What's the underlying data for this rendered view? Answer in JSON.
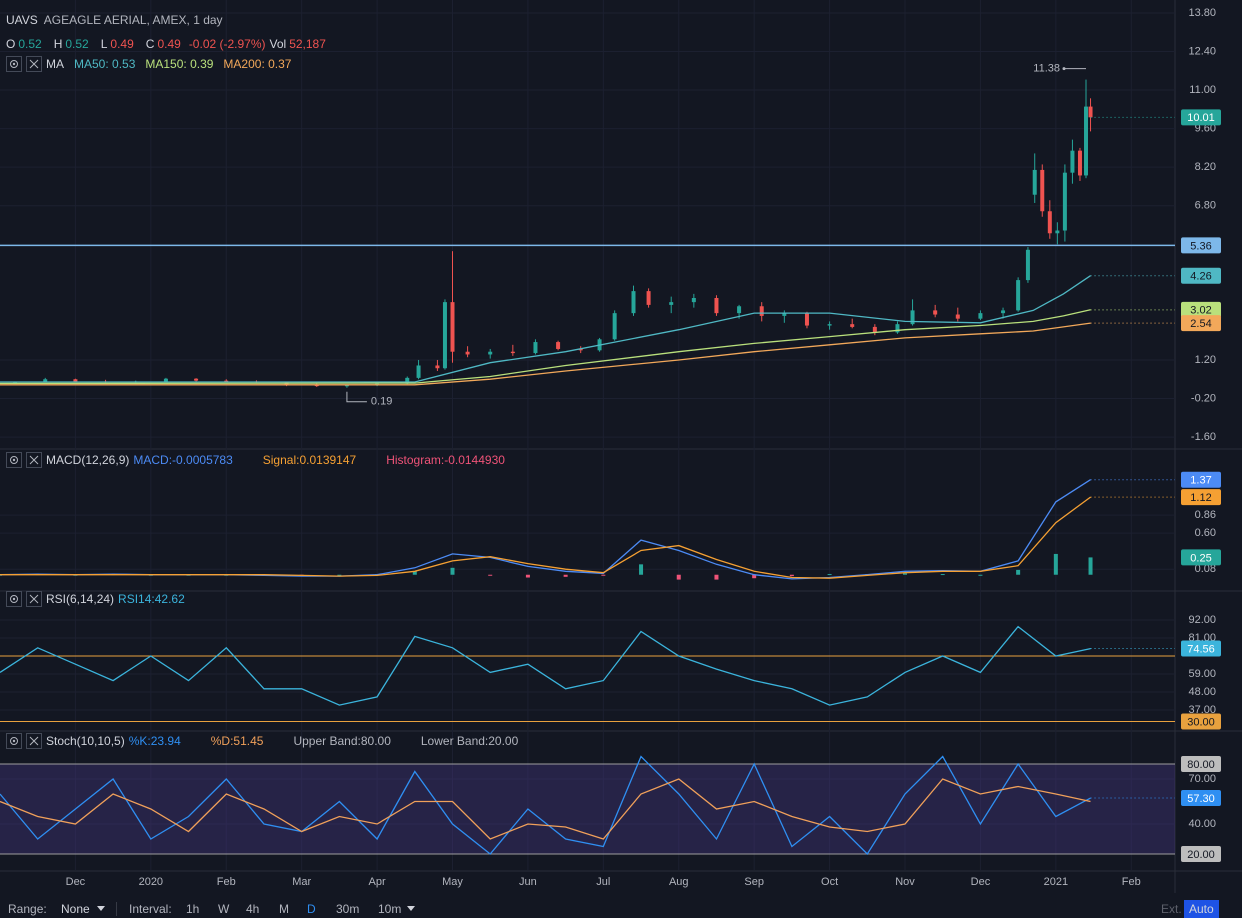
{
  "header": {
    "symbol": "UAVS",
    "description": "AGEAGLE AERIAL, AMEX, 1 day"
  },
  "chart_data": [
    {
      "type": "candlestick",
      "ohlc_legend": [
        "O",
        "0.52",
        "H",
        "0.52",
        "L",
        "0.49",
        "C",
        "0.49",
        "-0.02 (-2.97%)",
        "Vol",
        "52,187"
      ],
      "ma_title": "MA",
      "xlim": [
        0,
        15.58
      ],
      "xticks": [
        {
          "value": 1,
          "label": "Dec"
        },
        {
          "value": 2,
          "label": "2020"
        },
        {
          "value": 3,
          "label": "Feb"
        },
        {
          "value": 4,
          "label": "Mar"
        },
        {
          "value": 5,
          "label": "Apr"
        },
        {
          "value": 6,
          "label": "May"
        },
        {
          "value": 7,
          "label": "Jun"
        },
        {
          "value": 8,
          "label": "Jul"
        },
        {
          "value": 9,
          "label": "Aug"
        },
        {
          "value": 10,
          "label": "Sep"
        },
        {
          "value": 11,
          "label": "Oct"
        },
        {
          "value": 12,
          "label": "Nov"
        },
        {
          "value": 13,
          "label": "Dec"
        },
        {
          "value": 14,
          "label": "2021"
        },
        {
          "value": 15,
          "label": "Feb"
        }
      ],
      "ylim": [
        -1.96,
        14.27
      ],
      "yticks": [
        {
          "value": 13.8,
          "label": "13.80"
        },
        {
          "value": 12.4,
          "label": "12.40"
        },
        {
          "value": 11,
          "label": "11.00"
        },
        {
          "value": 9.6,
          "label": "9.60"
        },
        {
          "value": 8.2,
          "label": "8.20"
        },
        {
          "value": 6.8,
          "label": "6.80"
        },
        {
          "value": 1.2,
          "label": "1.20"
        },
        {
          "value": -0.2,
          "label": "-0.20"
        },
        {
          "value": -1.6,
          "label": "-1.60"
        }
      ],
      "grid": true,
      "candles": {
        "up_color": "#26a69a",
        "down_color": "#ef5350",
        "last_value_label": true,
        "x": [
          0.2,
          0.6,
          1.0,
          1.4,
          1.8,
          2.2,
          2.6,
          3.0,
          3.4,
          3.8,
          4.2,
          4.6,
          5.0,
          5.4,
          5.55,
          5.8,
          5.9,
          6.0,
          6.2,
          6.5,
          6.8,
          7.1,
          7.4,
          7.7,
          7.95,
          8.15,
          8.4,
          8.6,
          8.9,
          9.2,
          9.5,
          9.8,
          10.1,
          10.4,
          10.7,
          11.0,
          11.3,
          11.6,
          11.9,
          12.1,
          12.4,
          12.7,
          13.0,
          13.3,
          13.5,
          13.63,
          13.72,
          13.82,
          13.92,
          14.02,
          14.12,
          14.22,
          14.32,
          14.4,
          14.46
        ],
        "open": [
          0.35,
          0.4,
          0.5,
          0.42,
          0.38,
          0.42,
          0.52,
          0.45,
          0.42,
          0.38,
          0.3,
          0.25,
          0.28,
          0.34,
          0.55,
          1.0,
          0.9,
          3.3,
          1.5,
          1.4,
          1.5,
          1.45,
          1.85,
          1.6,
          1.55,
          1.95,
          2.9,
          3.7,
          3.2,
          3.3,
          3.45,
          2.9,
          3.15,
          2.8,
          2.9,
          2.45,
          2.5,
          2.4,
          2.2,
          2.5,
          3.0,
          2.85,
          2.7,
          2.9,
          3.0,
          4.1,
          7.2,
          8.1,
          6.6,
          5.8,
          5.9,
          8.0,
          8.8,
          7.9,
          10.4
        ],
        "high": [
          0.42,
          0.55,
          0.52,
          0.48,
          0.45,
          0.55,
          0.54,
          0.5,
          0.46,
          0.4,
          0.35,
          0.3,
          0.36,
          0.6,
          1.2,
          1.2,
          3.4,
          5.15,
          1.7,
          1.6,
          1.75,
          1.95,
          1.9,
          1.7,
          2.0,
          3.0,
          3.9,
          3.8,
          3.5,
          3.6,
          3.55,
          3.2,
          3.3,
          3.0,
          2.95,
          2.6,
          2.7,
          2.5,
          2.6,
          3.4,
          3.2,
          3.1,
          3.0,
          3.1,
          4.2,
          5.3,
          8.7,
          8.3,
          7.0,
          6.2,
          8.3,
          9.2,
          8.9,
          11.38,
          10.7
        ],
        "low": [
          0.33,
          0.38,
          0.4,
          0.36,
          0.35,
          0.4,
          0.42,
          0.4,
          0.36,
          0.25,
          0.22,
          0.19,
          0.25,
          0.32,
          0.5,
          0.8,
          0.85,
          1.1,
          1.3,
          1.25,
          1.35,
          1.4,
          1.55,
          1.45,
          1.5,
          1.9,
          2.8,
          3.1,
          2.9,
          3.1,
          2.8,
          2.7,
          2.6,
          2.55,
          2.35,
          2.3,
          2.35,
          2.1,
          2.15,
          2.45,
          2.75,
          2.6,
          2.65,
          2.7,
          2.95,
          4.0,
          6.9,
          6.4,
          5.6,
          5.4,
          5.5,
          7.6,
          7.7,
          7.8,
          9.5
        ],
        "close": [
          0.4,
          0.5,
          0.42,
          0.38,
          0.42,
          0.52,
          0.45,
          0.42,
          0.38,
          0.3,
          0.25,
          0.28,
          0.34,
          0.55,
          1.0,
          0.9,
          3.3,
          1.5,
          1.4,
          1.5,
          1.45,
          1.85,
          1.6,
          1.55,
          1.95,
          2.9,
          3.7,
          3.2,
          3.3,
          3.45,
          2.9,
          3.15,
          2.8,
          2.9,
          2.45,
          2.5,
          2.4,
          2.2,
          2.5,
          3.0,
          2.85,
          2.7,
          2.9,
          3.0,
          4.1,
          5.2,
          8.1,
          6.6,
          5.8,
          5.9,
          8.0,
          8.8,
          7.9,
          10.4,
          10.01
        ]
      },
      "hline": {
        "value": 5.36,
        "color": "#7db8ea"
      },
      "series": [
        {
          "name": "MA50: 0.53",
          "color": "#4fb8c4",
          "last_value_label": true,
          "x": [
            0,
            5.5,
            6.5,
            7.5,
            9,
            10,
            11,
            12,
            13,
            13.7,
            14.1,
            14.46
          ],
          "values": [
            0.4,
            0.4,
            1.1,
            1.5,
            2.3,
            2.9,
            2.9,
            2.6,
            2.55,
            3.0,
            3.6,
            4.26
          ]
        },
        {
          "name": "MA150: 0.39",
          "color": "#b9e07c",
          "last_value_label": true,
          "x": [
            0,
            5.5,
            6.5,
            7.5,
            9,
            10,
            11,
            12,
            13,
            13.7,
            14.1,
            14.46
          ],
          "values": [
            0.35,
            0.36,
            0.6,
            1.0,
            1.5,
            1.8,
            2.05,
            2.3,
            2.45,
            2.6,
            2.8,
            3.02
          ]
        },
        {
          "name": "MA200: 0.37",
          "color": "#f2a85a",
          "last_value_label": true,
          "x": [
            0,
            5.5,
            6.5,
            7.5,
            9,
            10,
            11,
            12,
            13,
            13.7,
            14.1,
            14.46
          ],
          "values": [
            0.3,
            0.3,
            0.5,
            0.8,
            1.2,
            1.5,
            1.75,
            2.0,
            2.15,
            2.25,
            2.4,
            2.54
          ]
        }
      ]
    },
    {
      "type": "macd",
      "title": "MACD(12,26,9)",
      "x": [
        0,
        0.5,
        1,
        1.5,
        2,
        2.5,
        3,
        3.5,
        4,
        4.5,
        5,
        5.5,
        6,
        6.5,
        7,
        7.5,
        8,
        8.5,
        9,
        9.5,
        10,
        10.5,
        11,
        11.5,
        12,
        12.5,
        13,
        13.5,
        14,
        14.46
      ],
      "ylim": [
        -0.22,
        1.77
      ],
      "yticks": [
        0.86,
        {
          "value": 0.6,
          "label": "0.60"
        },
        0.08
      ],
      "grid": true,
      "series": [
        {
          "name": "MACD:-0.0005783",
          "color": "#4c8bf5",
          "last_value_label": true,
          "values": [
            0,
            0.01,
            0,
            0.01,
            0,
            0,
            0,
            -0.01,
            -0.02,
            -0.02,
            0,
            0.1,
            0.3,
            0.25,
            0.12,
            0.05,
            0.02,
            0.5,
            0.35,
            0.15,
            0,
            -0.06,
            -0.04,
            0,
            0.05,
            0.06,
            0.05,
            0.2,
            1.05,
            1.37
          ]
        },
        {
          "name": "Signal:0.0139147",
          "color": "#f5a033",
          "last_value_label": true,
          "values": [
            0,
            0,
            0,
            0,
            0,
            0,
            0,
            0,
            -0.01,
            -0.02,
            -0.01,
            0.05,
            0.2,
            0.26,
            0.16,
            0.08,
            0.03,
            0.35,
            0.42,
            0.22,
            0.05,
            -0.04,
            -0.05,
            -0.01,
            0.03,
            0.05,
            0.05,
            0.13,
            0.75,
            1.12
          ]
        }
      ],
      "histogram": {
        "name": "Histogram:-0.0144930",
        "color": "#ef5378",
        "up_color": "#26a69a",
        "down_color": "#ef5378",
        "last_value_label": true,
        "values": [
          0,
          0.01,
          0,
          0.01,
          0,
          0,
          0,
          -0.01,
          -0.01,
          0,
          0.01,
          0.05,
          0.1,
          -0.01,
          -0.04,
          -0.03,
          -0.01,
          0.15,
          -0.07,
          -0.07,
          -0.05,
          -0.02,
          0.01,
          0.01,
          0.02,
          0.01,
          0,
          0.07,
          0.3,
          0.25
        ]
      }
    },
    {
      "type": "line",
      "title": "RSI(6,14,24)",
      "x": [
        0,
        0.5,
        1,
        1.5,
        2,
        2.5,
        3,
        3.5,
        4,
        4.5,
        5,
        5.5,
        6,
        6.5,
        7,
        7.5,
        8,
        8.5,
        9,
        9.5,
        10,
        10.5,
        11,
        11.5,
        12,
        12.5,
        13,
        13.5,
        14,
        14.46
      ],
      "ylim": [
        24.8,
        108.5
      ],
      "yticks": [
        {
          "value": 92,
          "label": "92.00"
        },
        {
          "value": 81,
          "label": "81.00"
        },
        {
          "value": 59,
          "label": "59.00"
        },
        {
          "value": 48,
          "label": "48.00"
        },
        {
          "value": 37,
          "label": "37.00"
        }
      ],
      "grid": true,
      "bands": [
        70,
        {
          "value": 30,
          "label": "30.00"
        }
      ],
      "band_color": "#e8a13e",
      "series": [
        {
          "name": "RSI14:42.62",
          "color": "#3bb4dc",
          "last_value_label": true,
          "values": [
            60,
            75,
            65,
            55,
            70,
            55,
            75,
            50,
            50,
            40,
            45,
            82,
            75,
            60,
            65,
            50,
            55,
            85,
            70,
            62,
            55,
            50,
            40,
            45,
            60,
            70,
            60,
            88,
            70,
            74.56
          ]
        }
      ]
    },
    {
      "type": "stochastic",
      "title": "Stoch(10,10,5)",
      "x": [
        0,
        0.5,
        1,
        1.5,
        2,
        2.5,
        3,
        3.5,
        4,
        4.5,
        5,
        5.5,
        6,
        6.5,
        7,
        7.5,
        8,
        8.5,
        9,
        9.5,
        10,
        10.5,
        11,
        11.5,
        12,
        12.5,
        13,
        13.5,
        14,
        14.46
      ],
      "ylim": [
        9.3,
        100.7
      ],
      "yticks": [
        {
          "value": 70,
          "label": "70.00"
        },
        {
          "value": 40,
          "label": "40.00"
        }
      ],
      "grid": true,
      "bands": [
        {
          "value": 80,
          "label": "80.00"
        },
        {
          "value": 20,
          "label": "20.00"
        }
      ],
      "band_color": "#9e9e9e",
      "band_fill": "#4a3a8c",
      "band_legend": [
        "Upper Band:80.00",
        "Lower Band:20.00"
      ],
      "series": [
        {
          "name": "%K:23.94",
          "color": "#2f8ff2",
          "last_value_label": true,
          "values": [
            60,
            30,
            50,
            70,
            30,
            45,
            70,
            40,
            35,
            55,
            30,
            75,
            40,
            20,
            50,
            30,
            25,
            85,
            60,
            30,
            80,
            25,
            45,
            20,
            60,
            85,
            40,
            80,
            45,
            57.3
          ],
          "value_labels": [
            null,
            null,
            null,
            null,
            null,
            null,
            null,
            null,
            null,
            null,
            null,
            null,
            null,
            null,
            null,
            null,
            null,
            null,
            null,
            null,
            null,
            null,
            null,
            null,
            null,
            null,
            null,
            null,
            null,
            "57.30"
          ]
        },
        {
          "name": "%D:51.45",
          "color": "#f0a05a",
          "values": [
            55,
            45,
            40,
            60,
            50,
            35,
            60,
            50,
            35,
            45,
            40,
            55,
            55,
            30,
            40,
            38,
            30,
            60,
            70,
            50,
            55,
            45,
            38,
            35,
            40,
            70,
            60,
            65,
            60,
            55
          ]
        }
      ]
    }
  ],
  "toolbar": {
    "range_label": "Range:",
    "range_value": "None",
    "interval_label": "Interval:",
    "intervals": [
      "1h",
      "W",
      "4h",
      "M",
      "D",
      "30m",
      "10m"
    ],
    "active_interval": "D",
    "buttons": [
      "Ext.",
      "Auto"
    ],
    "active_button": "Auto"
  }
}
